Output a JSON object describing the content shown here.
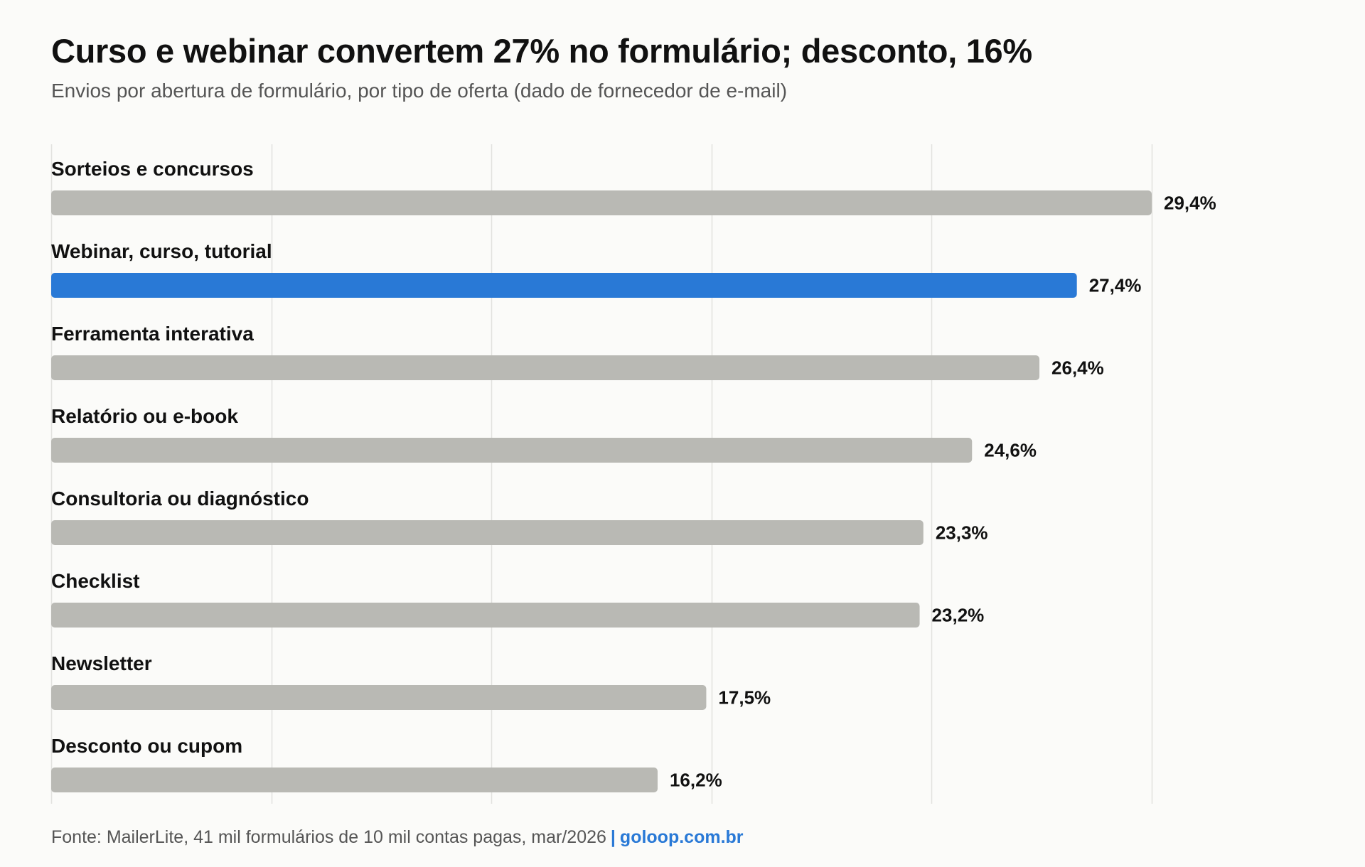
{
  "header": {
    "title": "Curso e webinar convertem 27% no formulário; desconto, 16%",
    "subtitle": "Envios por abertura de formulário, por tipo de oferta (dado de fornecedor de e-mail)"
  },
  "footer": {
    "source": "Fonte: MailerLite, 41 mil formulários de 10 mil contas pagas, mar/2026",
    "separator": "|",
    "site": "goloop.com.br"
  },
  "colors": {
    "highlight": "#2979d6",
    "bar": "#b9b9b4",
    "grid": "#e2e2df",
    "text": "#111111",
    "muted": "#555555",
    "background": "#fbfbf9"
  },
  "chart_data": {
    "type": "bar",
    "orientation": "horizontal",
    "categories": [
      "Sorteios e concursos",
      "Webinar, curso, tutorial",
      "Ferramenta interativa",
      "Relatório ou e-book",
      "Consultoria ou diagnóstico",
      "Checklist",
      "Newsletter",
      "Desconto ou cupom"
    ],
    "values": [
      29.4,
      27.4,
      26.4,
      24.6,
      23.3,
      23.2,
      17.5,
      16.2
    ],
    "value_labels": [
      "29,4%",
      "27,4%",
      "26,4%",
      "24,6%",
      "23,3%",
      "23,2%",
      "17,5%",
      "16,2%"
    ],
    "highlighted_category": "Webinar, curso, tutorial",
    "unit": "%",
    "xlim": [
      0,
      29.4
    ],
    "gridlines": [
      0,
      5.88,
      11.76,
      17.64,
      23.52,
      29.4
    ],
    "grid": true,
    "legend": "none",
    "xlabel": "",
    "ylabel": ""
  }
}
